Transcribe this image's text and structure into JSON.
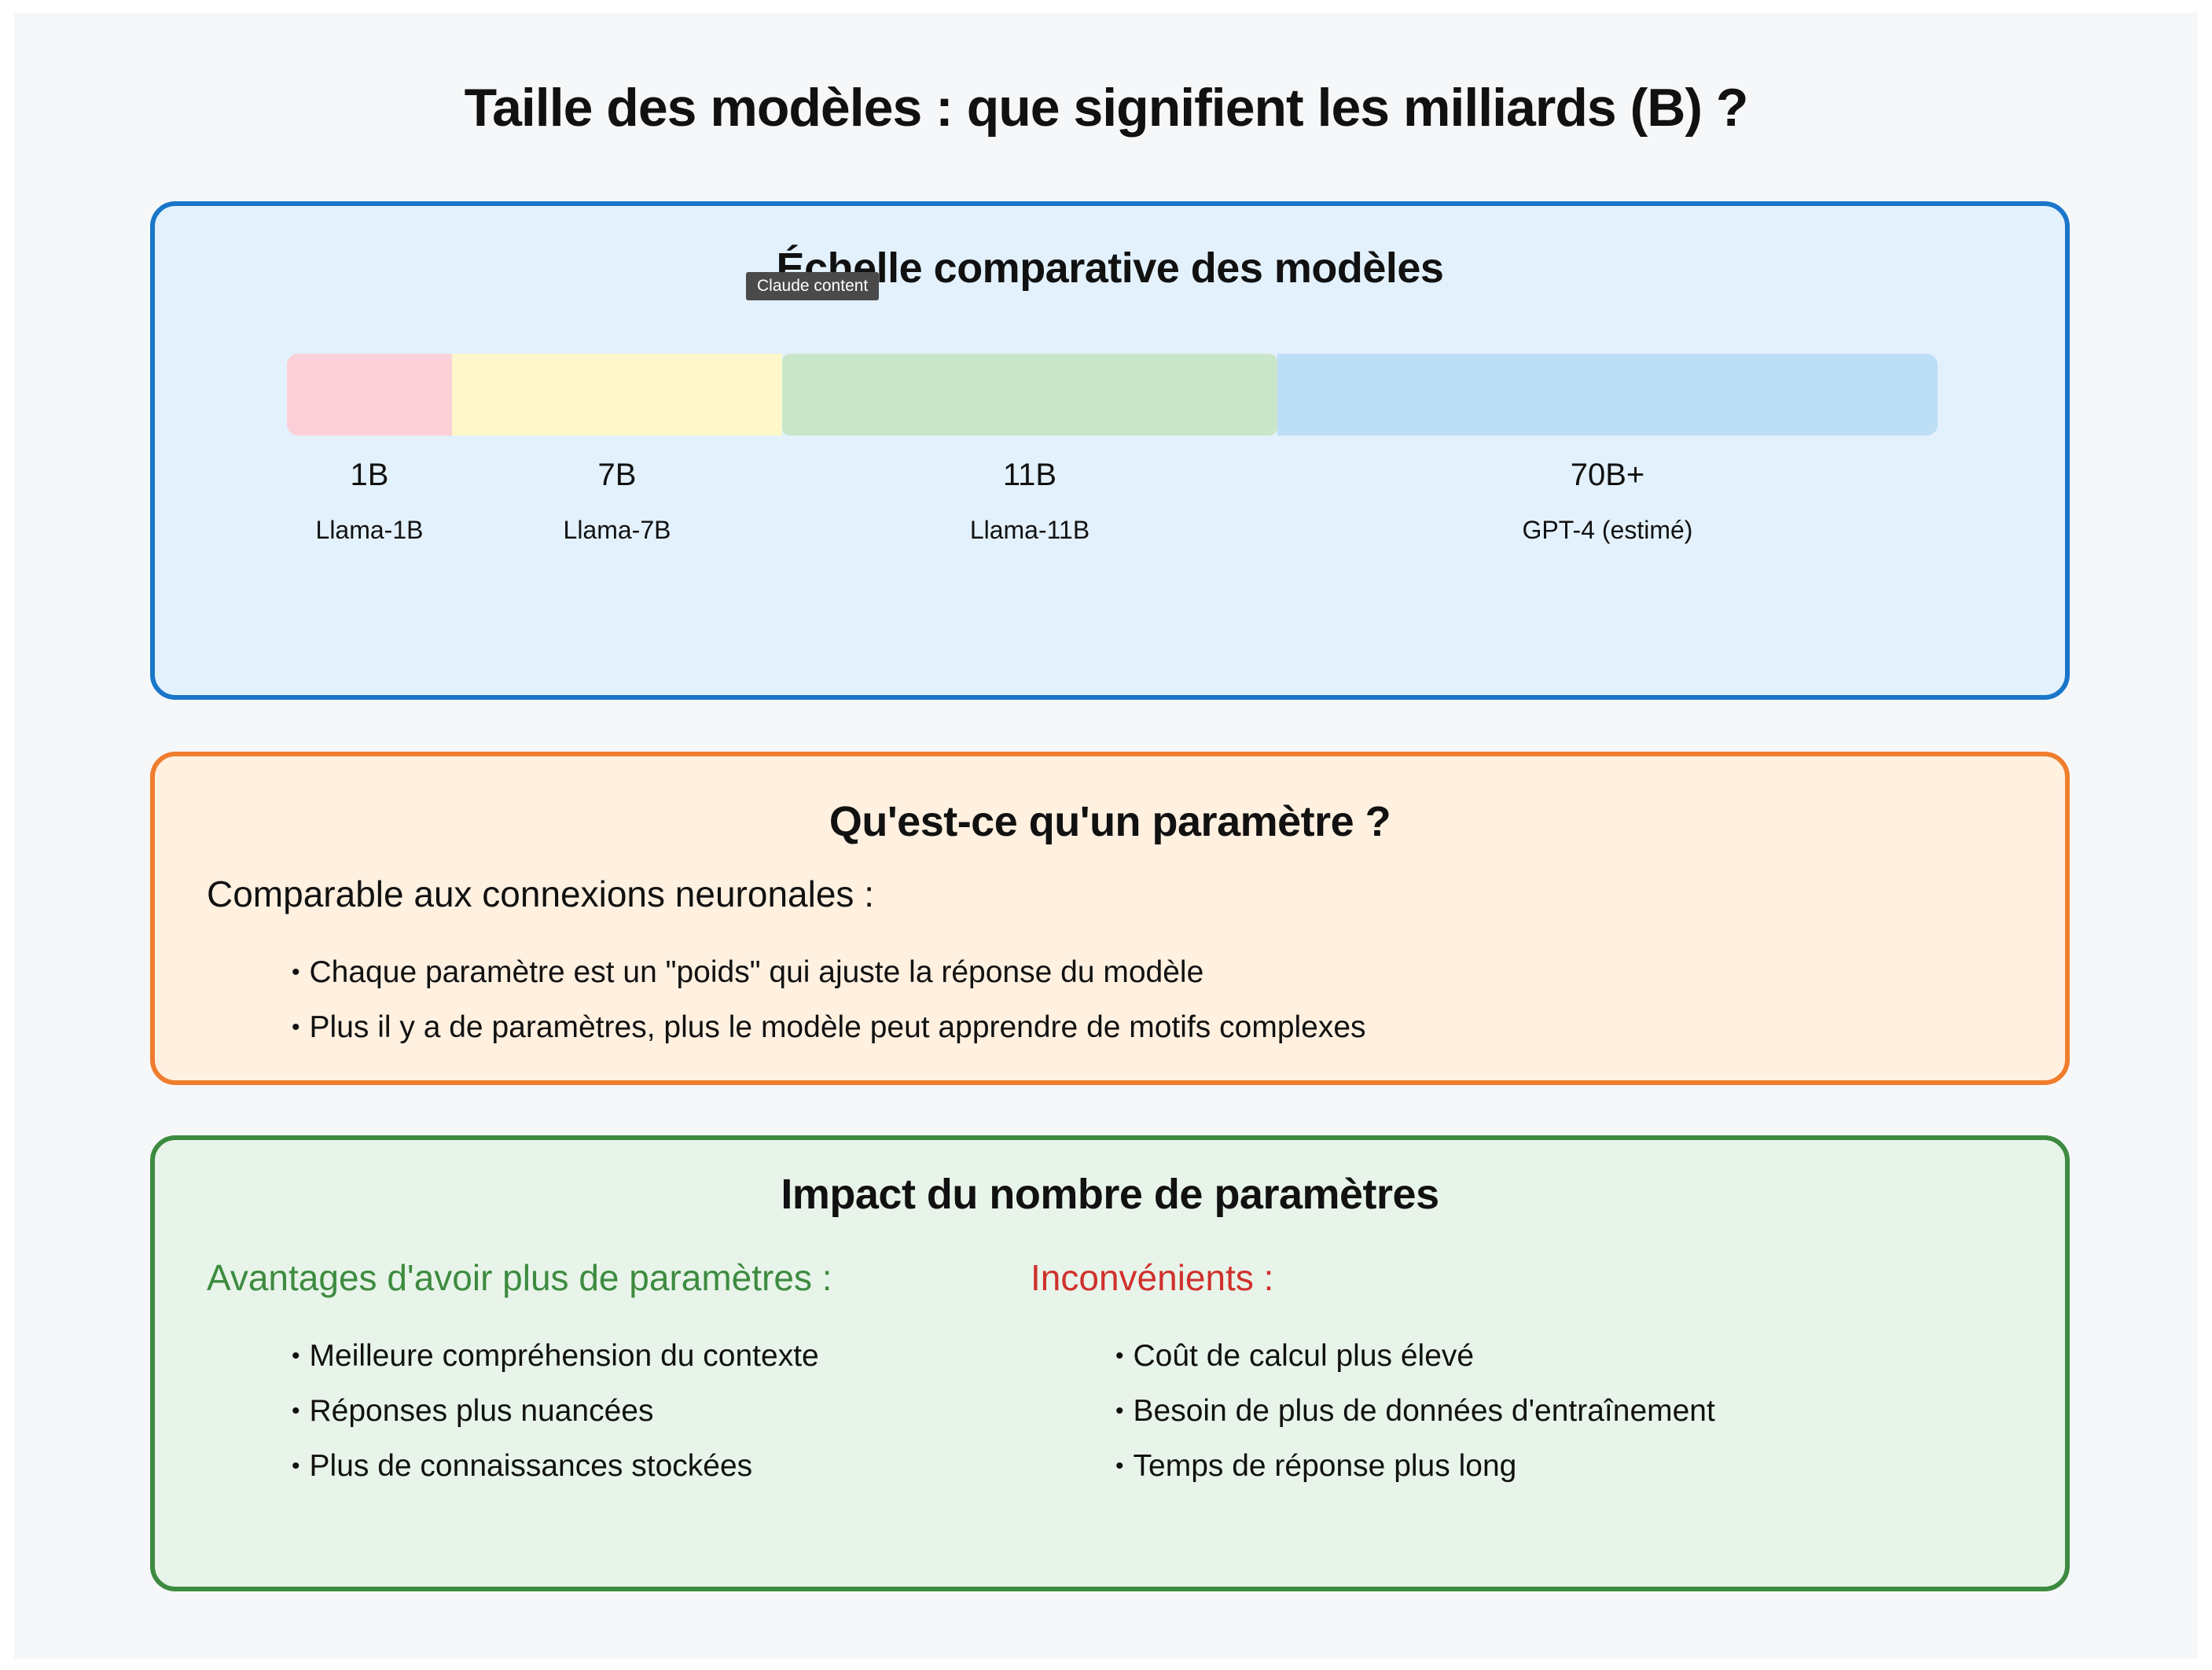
{
  "title": "Taille des modèles : que signifient les milliards (B) ?",
  "tooltip": "Claude content",
  "scale": {
    "title": "Échelle comparative des modèles",
    "entries": [
      {
        "size": "1B",
        "model": "Llama-1B",
        "color": "#fcd0d8"
      },
      {
        "size": "7B",
        "model": "Llama-7B",
        "color": "#fdf7c9"
      },
      {
        "size": "11B",
        "model": "Llama-11B",
        "color": "#c9e6cb"
      },
      {
        "size": "70B+",
        "model": "GPT-4 (estimé)",
        "color": "#bcdff6"
      }
    ]
  },
  "parameter": {
    "title": "Qu'est-ce qu'un paramètre ?",
    "intro": "Comparable aux connexions neuronales :",
    "bullets": [
      "Chaque paramètre est un \"poids\" qui ajuste la réponse du modèle",
      "Plus il y a de paramètres, plus le modèle peut apprendre de motifs complexes"
    ]
  },
  "impact": {
    "title": "Impact du nombre de paramètres",
    "advantages": {
      "heading": "Avantages d'avoir plus de paramètres :",
      "color": "#3d8b40",
      "items": [
        "Meilleure compréhension du contexte",
        "Réponses plus nuancées",
        "Plus de connaissances stockées"
      ]
    },
    "disadvantages": {
      "heading": "Inconvénients :",
      "color": "#d0312d",
      "items": [
        "Coût de calcul plus élevé",
        "Besoin de plus de données d'entraînement",
        "Temps de réponse plus long"
      ]
    }
  },
  "colors": {
    "scale_border": "#1976c9",
    "parameter_border": "#ef7d2d",
    "impact_border": "#3d8b40"
  }
}
